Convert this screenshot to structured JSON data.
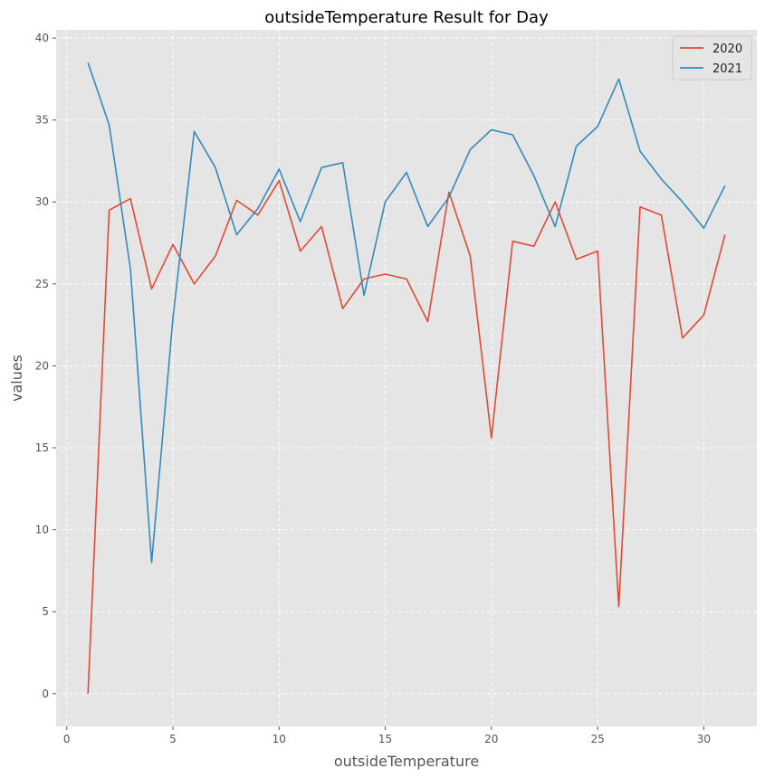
{
  "chart_data": {
    "type": "line",
    "title": "outsideTemperature Result for Day",
    "xlabel": "outsideTemperature",
    "ylabel": "values",
    "xlim": [
      -0.5,
      32.5
    ],
    "ylim": [
      -2,
      40.5
    ],
    "xticks": [
      0,
      5,
      10,
      15,
      20,
      25,
      30
    ],
    "yticks": [
      0,
      5,
      10,
      15,
      20,
      25,
      30,
      35,
      40
    ],
    "grid": true,
    "legend_position": "top-right",
    "x": [
      1,
      2,
      3,
      4,
      5,
      6,
      7,
      8,
      9,
      10,
      11,
      12,
      13,
      14,
      15,
      16,
      17,
      18,
      19,
      20,
      21,
      22,
      23,
      24,
      25,
      26,
      27,
      28,
      29,
      30,
      31
    ],
    "series": [
      {
        "name": "2020",
        "color": "#E24A33",
        "values": [
          0,
          29.5,
          30.2,
          24.7,
          27.4,
          25.0,
          26.7,
          30.1,
          29.2,
          31.3,
          27.0,
          28.5,
          23.5,
          25.3,
          25.6,
          25.3,
          22.7,
          30.6,
          26.7,
          15.6,
          27.6,
          27.3,
          30.0,
          26.5,
          27.0,
          5.3,
          29.7,
          29.2,
          21.7,
          23.1,
          28.0
        ]
      },
      {
        "name": "2021",
        "color": "#348ABD",
        "values": [
          38.5,
          34.7,
          25.9,
          8.0,
          22.9,
          34.3,
          32.1,
          28.0,
          29.6,
          32.0,
          28.8,
          32.1,
          32.4,
          24.3,
          30.0,
          31.8,
          28.5,
          30.3,
          33.2,
          34.4,
          34.1,
          31.6,
          28.5,
          33.4,
          34.6,
          37.5,
          33.1,
          31.4,
          30.0,
          28.4,
          31.0
        ]
      }
    ]
  },
  "style": {
    "plot_background": "#E5E5E5",
    "grid_color": "#FFFFFF",
    "axis_text_color": "#555555"
  }
}
